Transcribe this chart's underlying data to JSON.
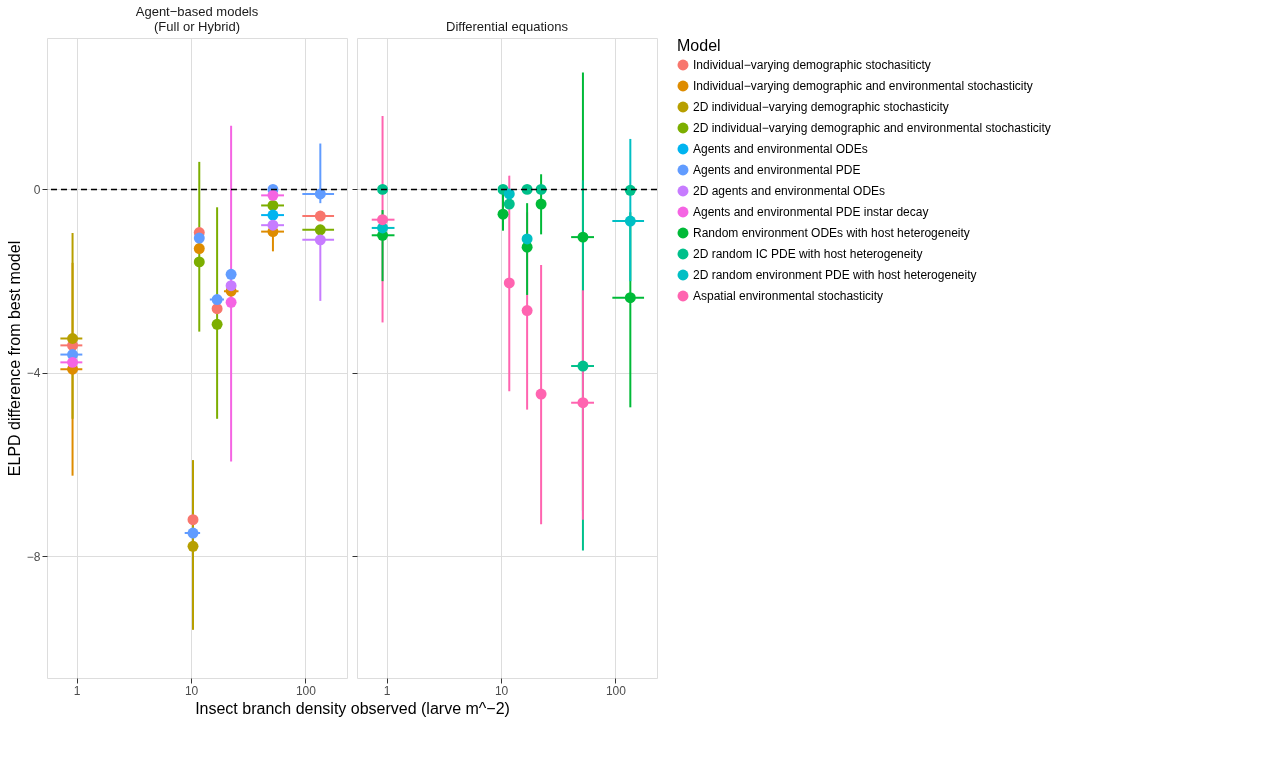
{
  "chart_data": [
    {
      "type": "scatter",
      "title": [
        "Agent−based models",
        "(Full or Hybrid)"
      ],
      "xlabel": "Insect branch density observed (larve m^−2)",
      "ylabel": "ELPD difference from best model",
      "legend_title": "Model",
      "legend": "right",
      "grid": true,
      "marker": "circle",
      "log": "x",
      "x": [
        0.92,
        10.4,
        11.8,
        16.9,
        22.4,
        52,
        135
      ],
      "xlim": [
        0.55,
        231
      ],
      "xticks": [
        1,
        10,
        100
      ],
      "ylim": [
        -10.65,
        3.3
      ],
      "yticks": [
        -8,
        -4,
        0
      ],
      "ref_lines": [
        {
          "axis": "y",
          "value": 0,
          "color": "#000000",
          "line_style": "dashed"
        }
      ],
      "series": [
        {
          "name": "Individual−varying demographic stochasiticty",
          "color": "#f8766d",
          "values": [
            -3.4,
            -7.2,
            -0.94,
            -2.6,
            null,
            null,
            -0.58
          ],
          "errors": [
            null,
            null,
            null,
            null,
            null,
            null,
            null
          ],
          "xerrors": [
            [
              0.72,
              1.12
            ],
            null,
            null,
            null,
            null,
            null,
            [
              94,
              178
            ]
          ]
        },
        {
          "name": "Individual−varying demographic and environmental stochasticity",
          "color": "#de8c00",
          "values": [
            -3.92,
            null,
            -1.29,
            null,
            -2.22,
            -0.92,
            null
          ],
          "errors": [
            [
              -6.24,
              -1.6
            ],
            null,
            null,
            null,
            null,
            [
              -1.35,
              -0.5
            ],
            null
          ],
          "xerrors": [
            [
              0.72,
              1.12
            ],
            null,
            null,
            null,
            [
              19.4,
              26
            ],
            [
              41,
              65
            ],
            null
          ]
        },
        {
          "name": "2D individual−varying demographic stochasticity",
          "color": "#b79f00",
          "values": [
            -3.25,
            -7.78,
            null,
            null,
            null,
            null,
            null
          ],
          "errors": [
            [
              -5.0,
              -0.95
            ],
            [
              -9.6,
              -5.9
            ],
            null,
            null,
            null,
            null,
            null
          ],
          "xerrors": [
            [
              0.72,
              1.12
            ],
            null,
            null,
            null,
            null,
            null,
            null
          ]
        },
        {
          "name": "2D individual−varying demographic and environmental stochasticity",
          "color": "#7cae00",
          "values": [
            null,
            null,
            -1.58,
            -2.94,
            null,
            -0.35,
            -0.88
          ],
          "errors": [
            null,
            null,
            [
              -3.1,
              0.6
            ],
            [
              -5.0,
              -0.39
            ],
            null,
            null,
            null
          ],
          "xerrors": [
            null,
            null,
            null,
            null,
            null,
            [
              41,
              65
            ],
            [
              94,
              178
            ]
          ]
        },
        {
          "name": "Agents and environmental ODEs",
          "color": "#00b4f0",
          "values": [
            null,
            null,
            null,
            null,
            null,
            -0.56,
            null
          ],
          "errors": [
            null,
            null,
            null,
            null,
            null,
            null,
            null
          ],
          "xerrors": [
            null,
            null,
            null,
            null,
            null,
            [
              41,
              65
            ],
            null
          ]
        },
        {
          "name": "Agents and environmental PDE",
          "color": "#619cff",
          "values": [
            -3.6,
            -7.49,
            -1.06,
            -2.4,
            -1.85,
            0.0,
            -0.1
          ],
          "errors": [
            null,
            null,
            null,
            null,
            null,
            null,
            [
              -0.3,
              1.0
            ]
          ],
          "xerrors": [
            [
              0.72,
              1.12
            ],
            [
              8.8,
              12.0
            ],
            null,
            [
              14.6,
              19.4
            ],
            null,
            null,
            [
              94,
              178
            ]
          ]
        },
        {
          "name": "2D agents and environmental ODEs",
          "color": "#c77cff",
          "values": [
            null,
            null,
            null,
            null,
            -2.1,
            -0.78,
            -1.1
          ],
          "errors": [
            null,
            null,
            null,
            null,
            null,
            null,
            [
              -2.43,
              -1.1
            ]
          ],
          "xerrors": [
            null,
            null,
            null,
            null,
            null,
            [
              41,
              65
            ],
            [
              94,
              178
            ]
          ]
        },
        {
          "name": "Agents and environmental PDE instar decay",
          "color": "#f564e3",
          "values": [
            -3.77,
            null,
            null,
            null,
            -2.46,
            -0.13,
            null
          ],
          "errors": [
            null,
            null,
            null,
            null,
            [
              -5.93,
              1.39
            ],
            null,
            null
          ],
          "xerrors": [
            [
              0.72,
              1.12
            ],
            null,
            null,
            null,
            null,
            [
              41,
              65
            ],
            null
          ]
        }
      ]
    },
    {
      "type": "scatter",
      "title": "Differential equations",
      "legend": "right",
      "grid": true,
      "marker": "circle",
      "log": "x",
      "tick_labels": "x",
      "x": [
        0.92,
        10.4,
        11.8,
        16.9,
        22.4,
        52,
        135
      ],
      "xlim": [
        0.55,
        231
      ],
      "xticks": [
        1,
        10,
        100
      ],
      "ylim": [
        -10.65,
        3.3
      ],
      "yticks": [
        -8,
        -4,
        0
      ],
      "ref_lines": [
        {
          "axis": "y",
          "value": 0,
          "color": "#000000",
          "line_style": "dashed"
        }
      ],
      "series": [
        {
          "name": "Random environment ODEs with host heterogeneity",
          "color": "#00ba38",
          "values": [
            -1.0,
            -0.54,
            null,
            -1.26,
            -0.32,
            -1.04,
            -2.36
          ],
          "errors": [
            [
              -2.0,
              -0.45
            ],
            [
              -0.9,
              -0.1
            ],
            null,
            [
              -2.3,
              -0.3
            ],
            [
              -0.98,
              0.33
            ],
            [
              -7.0,
              2.55
            ],
            [
              -4.75,
              -0.5
            ]
          ],
          "xerrors": [
            [
              0.74,
              1.17
            ],
            null,
            null,
            null,
            null,
            [
              41,
              65
            ],
            [
              94,
              178
            ]
          ]
        },
        {
          "name": "2D random IC PDE with host heterogeneity",
          "color": "#00c08b",
          "values": [
            0.0,
            0.0,
            -0.32,
            0.0,
            0.0,
            -3.85,
            -0.02
          ],
          "errors": [
            null,
            null,
            null,
            null,
            null,
            [
              -7.87,
              0.2
            ],
            null
          ],
          "xerrors": [
            null,
            null,
            null,
            null,
            null,
            [
              41,
              65
            ],
            null
          ]
        },
        {
          "name": "2D random environment PDE with host heterogeneity",
          "color": "#00bfc4",
          "values": [
            -0.84,
            null,
            -0.1,
            -1.08,
            null,
            null,
            -0.69
          ],
          "errors": [
            null,
            null,
            null,
            null,
            null,
            null,
            [
              -2.0,
              1.1
            ]
          ],
          "xerrors": [
            [
              0.74,
              1.17
            ],
            null,
            null,
            null,
            null,
            null,
            [
              94,
              178
            ]
          ]
        },
        {
          "name": "Aspatial environmental stochasticity",
          "color": "#ff64b0",
          "values": [
            -0.66,
            null,
            -2.04,
            -2.64,
            -4.46,
            -4.65,
            null
          ],
          "errors": [
            [
              -2.9,
              1.6
            ],
            null,
            [
              -4.4,
              0.3
            ],
            [
              -4.8,
              -0.5
            ],
            [
              -7.3,
              -1.65
            ],
            [
              -7.2,
              -2.2
            ],
            null
          ],
          "xerrors": [
            [
              0.74,
              1.17
            ],
            null,
            null,
            null,
            null,
            [
              41,
              65
            ],
            null
          ]
        }
      ]
    }
  ]
}
